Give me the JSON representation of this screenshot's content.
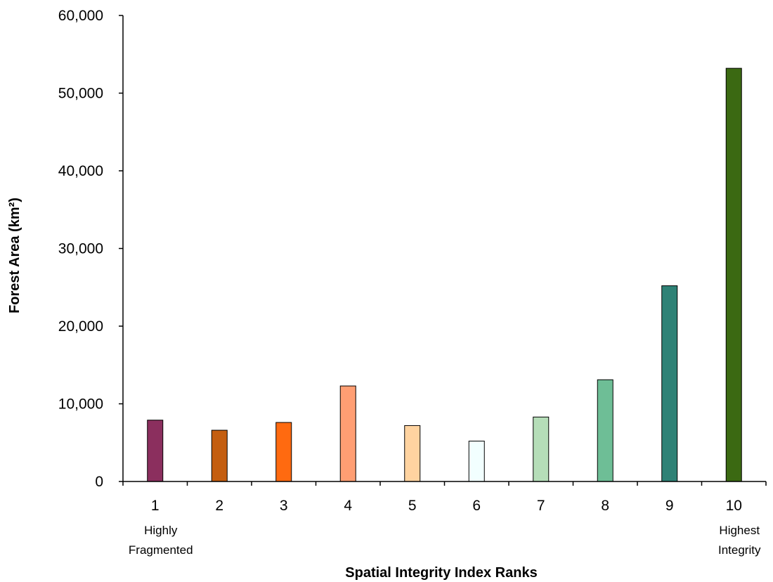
{
  "chart_data": {
    "type": "bar",
    "title": "",
    "xlabel": "Spatial Integrity  Index Ranks",
    "ylabel": "Forest Area (km²)",
    "categories": [
      "1",
      "2",
      "3",
      "4",
      "5",
      "6",
      "7",
      "8",
      "9",
      "10"
    ],
    "category_sublabels": [
      [
        "Highly",
        "Fragmented"
      ],
      [],
      [],
      [],
      [],
      [],
      [],
      [],
      [],
      [
        "Highest",
        "Integrity"
      ]
    ],
    "values": [
      7900,
      6600,
      7600,
      12300,
      7200,
      5200,
      8300,
      13100,
      25200,
      53200
    ],
    "colors": [
      "#8B2F5E",
      "#C45E10",
      "#FF6A10",
      "#FF9E73",
      "#FFD3A0",
      "#F2FFFF",
      "#B5DDB8",
      "#6EBE96",
      "#2F8276",
      "#3B6912"
    ],
    "ylim": [
      0,
      60000
    ],
    "yticks": [
      "0",
      "10,000",
      "20,000",
      "30,000",
      "40,000",
      "50,000",
      "60,000"
    ],
    "ytick_values": [
      0,
      10000,
      20000,
      30000,
      40000,
      50000,
      60000
    ],
    "grid": false,
    "legend": "none"
  }
}
